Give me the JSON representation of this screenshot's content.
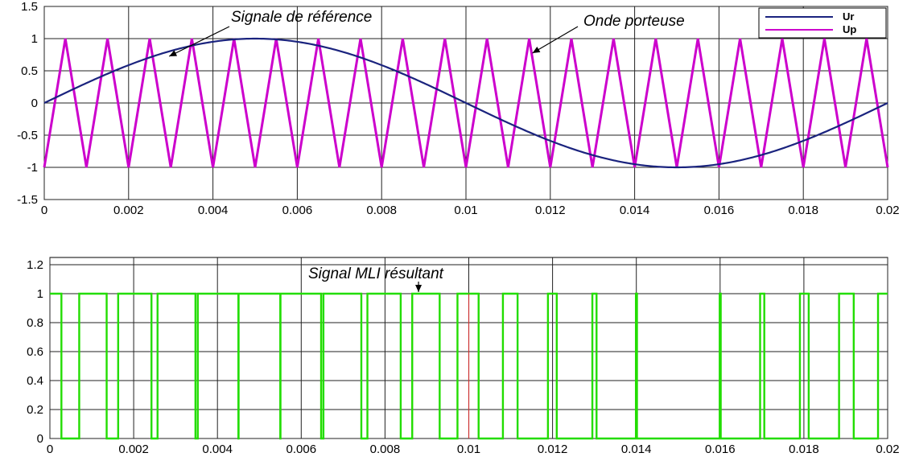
{
  "colors": {
    "reference": "#1a237e",
    "carrier": "#cc00cc",
    "pwm": "#22dd00",
    "grid": "#222222",
    "marker": "#cc3333"
  },
  "chart_data": [
    {
      "type": "line",
      "title": "",
      "xlabel": "",
      "ylabel": "",
      "xlim": [
        0,
        0.02
      ],
      "ylim": [
        -1.5,
        1.5
      ],
      "grid": true,
      "x_ticks": [
        "0",
        "0.002",
        "0.004",
        "0.006",
        "0.008",
        "0.01",
        "0.012",
        "0.014",
        "0.016",
        "0.018",
        "0.02"
      ],
      "y_ticks": [
        "-1.5",
        "-1",
        "-0.5",
        "0",
        "0.5",
        "1",
        "1.5"
      ],
      "series": [
        {
          "name": "Ur",
          "kind": "sine",
          "amplitude": 1,
          "frequency_hz": 50,
          "x": [
            0,
            0.001,
            0.002,
            0.003,
            0.004,
            0.005,
            0.006,
            0.007,
            0.008,
            0.009,
            0.01,
            0.011,
            0.012,
            0.013,
            0.014,
            0.015,
            0.016,
            0.017,
            0.018,
            0.019,
            0.02
          ],
          "y": [
            0,
            0.309,
            0.588,
            0.809,
            0.951,
            1,
            0.951,
            0.809,
            0.588,
            0.309,
            0,
            -0.309,
            -0.588,
            -0.809,
            -0.951,
            -1,
            -0.951,
            -0.809,
            -0.588,
            -0.309,
            0
          ]
        },
        {
          "name": "Up",
          "kind": "triangle",
          "amplitude": 1,
          "frequency_hz": 1000,
          "x": [
            0,
            0.0005,
            0.001,
            0.0015,
            0.002,
            0.0025,
            0.003,
            0.0035,
            0.004,
            0.0045,
            0.005,
            0.0055,
            0.006,
            0.0065,
            0.007,
            0.0075,
            0.008,
            0.0085,
            0.009,
            0.0095,
            0.01,
            0.0105,
            0.011,
            0.0115,
            0.012,
            0.0125,
            0.013,
            0.0135,
            0.014,
            0.0145,
            0.015,
            0.0155,
            0.016,
            0.0165,
            0.017,
            0.0175,
            0.018,
            0.0185,
            0.019,
            0.0195,
            0.02
          ],
          "y": [
            -1,
            1,
            -1,
            1,
            -1,
            1,
            -1,
            1,
            -1,
            1,
            -1,
            1,
            -1,
            1,
            -1,
            1,
            -1,
            1,
            -1,
            1,
            -1,
            1,
            -1,
            1,
            -1,
            1,
            -1,
            1,
            -1,
            1,
            -1,
            1,
            -1,
            1,
            -1,
            1,
            -1,
            1,
            -1,
            1,
            -1
          ]
        }
      ],
      "legend": {
        "placement": "top-right",
        "entries": [
          "Ur",
          "Up"
        ]
      },
      "annotations": [
        {
          "text": "Signale de référence",
          "target_x": 0.003,
          "target_y": 0.8
        },
        {
          "text": "Onde porteuse",
          "target_x": 0.0115,
          "target_y": 0.85
        }
      ]
    },
    {
      "type": "line",
      "step": true,
      "title": "",
      "xlabel": "",
      "ylabel": "",
      "xlim": [
        0,
        0.02
      ],
      "ylim": [
        0,
        1.25
      ],
      "grid": true,
      "x_ticks": [
        "0",
        "0.002",
        "0.004",
        "0.006",
        "0.008",
        "0.01",
        "0.012",
        "0.014",
        "0.016",
        "0.018",
        "0.02"
      ],
      "y_ticks": [
        "0",
        "0.2",
        "0.4",
        "0.6",
        "0.8",
        "1",
        "1.2"
      ],
      "series": [
        {
          "name": "",
          "derived_from": "Ur > Up comparison",
          "levels": [
            0,
            1
          ]
        }
      ],
      "annotations": [
        {
          "text": "Signal MLI résultant",
          "target_x": 0.0088,
          "target_y": 1.0
        }
      ]
    }
  ]
}
